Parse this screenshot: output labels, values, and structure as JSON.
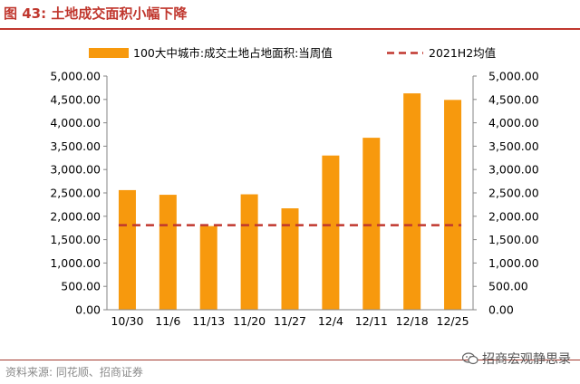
{
  "header": {
    "figure_title": "图 43:  土地成交面积小幅下降"
  },
  "chart_data": {
    "type": "bar",
    "categories": [
      "10/30",
      "11/6",
      "11/13",
      "11/20",
      "11/27",
      "12/4",
      "12/11",
      "12/18",
      "12/25"
    ],
    "series": [
      {
        "name": "100大中城市:成交土地占地面积:当周值",
        "type": "bar",
        "color": "#f7990d",
        "values": [
          2560,
          2460,
          1790,
          2470,
          2170,
          3300,
          3680,
          4630,
          4490
        ]
      },
      {
        "name": "2021H2均值",
        "type": "line",
        "style": "dashed",
        "color": "#c0372e",
        "values": [
          1810,
          1810,
          1810,
          1810,
          1810,
          1810,
          1810,
          1810,
          1810
        ]
      }
    ],
    "y_ticks": [
      "0.00",
      "500.00",
      "1,000.00",
      "1,500.00",
      "2,000.00",
      "2,500.00",
      "3,000.00",
      "3,500.00",
      "4,000.00",
      "4,500.00",
      "5,000.00"
    ],
    "ylim": [
      0,
      5000
    ],
    "y_step": 500,
    "secondary_axis": true,
    "legend_position": "top",
    "grid": false
  },
  "footer": {
    "source": "资料来源:  同花顺、招商证券",
    "watermark_text": "招商宏观静思录",
    "watermark_icon": "wechat-icon"
  }
}
